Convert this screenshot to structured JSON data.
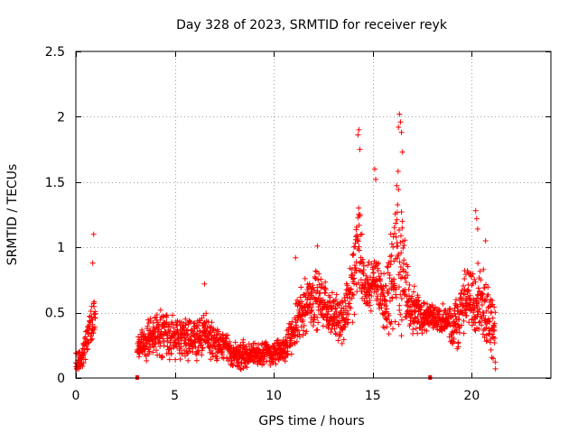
{
  "chart_data": {
    "type": "scatter",
    "title": "Day 328 of 2023, SRMTID for receiver reyk",
    "xlabel": "GPS time / hours",
    "ylabel": "SRMTID / TECUs",
    "xlim": [
      0,
      24
    ],
    "ylim": [
      0,
      2.5
    ],
    "xticks": [
      0,
      5,
      10,
      15,
      20
    ],
    "xtick_labels": [
      "0",
      "5",
      "10",
      "15",
      "20"
    ],
    "yticks": [
      0,
      0.5,
      1,
      1.5,
      2,
      2.5
    ],
    "ytick_labels": [
      "0",
      "0.5",
      "1",
      "1.5",
      "2",
      "2.5"
    ],
    "grid": true,
    "marker": "+",
    "series_color": "#ff0000",
    "gap_markers_x": [
      3.1,
      17.9
    ],
    "envelope": {
      "x": [
        0.0,
        0.3,
        0.5,
        0.7,
        0.9,
        1.0,
        3.1,
        3.5,
        4.0,
        4.5,
        5.0,
        5.5,
        6.0,
        6.5,
        7.0,
        7.5,
        8.0,
        8.5,
        9.0,
        9.5,
        10.0,
        10.5,
        11.0,
        11.5,
        12.0,
        12.5,
        13.0,
        13.5,
        14.0,
        14.3,
        14.6,
        15.0,
        15.3,
        15.6,
        16.0,
        16.3,
        16.5,
        16.8,
        17.0,
        17.3,
        17.6,
        17.9,
        18.3,
        18.7,
        19.0,
        19.3,
        19.6,
        20.0,
        20.3,
        20.6,
        21.0,
        21.2
      ],
      "low": [
        0.05,
        0.05,
        0.1,
        0.2,
        0.25,
        0.3,
        0.1,
        0.1,
        0.12,
        0.12,
        0.12,
        0.12,
        0.12,
        0.12,
        0.12,
        0.12,
        0.05,
        0.05,
        0.05,
        0.08,
        0.08,
        0.1,
        0.15,
        0.3,
        0.35,
        0.35,
        0.3,
        0.25,
        0.4,
        0.5,
        0.5,
        0.5,
        0.5,
        0.3,
        0.25,
        0.3,
        0.3,
        0.3,
        0.3,
        0.3,
        0.3,
        0.35,
        0.35,
        0.3,
        0.15,
        0.15,
        0.3,
        0.35,
        0.3,
        0.25,
        0.15,
        0.1
      ],
      "high": [
        0.2,
        0.25,
        0.4,
        0.55,
        0.7,
        0.75,
        0.35,
        0.45,
        0.55,
        0.55,
        0.5,
        0.5,
        0.5,
        0.55,
        0.45,
        0.35,
        0.3,
        0.3,
        0.3,
        0.3,
        0.3,
        0.32,
        0.55,
        0.8,
        0.9,
        0.8,
        0.65,
        0.65,
        1.1,
        1.6,
        0.85,
        0.95,
        1.0,
        0.8,
        1.3,
        1.75,
        1.3,
        0.9,
        0.8,
        0.7,
        0.6,
        0.6,
        0.55,
        0.6,
        0.55,
        0.8,
        0.85,
        0.9,
        0.95,
        0.85,
        0.75,
        0.6
      ]
    },
    "outliers": [
      {
        "x": 0.9,
        "y": 1.1
      },
      {
        "x": 0.85,
        "y": 0.88
      },
      {
        "x": 6.5,
        "y": 0.72
      },
      {
        "x": 11.1,
        "y": 0.92
      },
      {
        "x": 12.2,
        "y": 1.01
      },
      {
        "x": 14.3,
        "y": 1.9
      },
      {
        "x": 14.25,
        "y": 1.86
      },
      {
        "x": 14.35,
        "y": 1.75
      },
      {
        "x": 15.1,
        "y": 1.6
      },
      {
        "x": 15.15,
        "y": 1.52
      },
      {
        "x": 16.35,
        "y": 2.02
      },
      {
        "x": 16.4,
        "y": 1.96
      },
      {
        "x": 16.3,
        "y": 1.92
      },
      {
        "x": 16.45,
        "y": 1.88
      },
      {
        "x": 16.5,
        "y": 1.73
      },
      {
        "x": 20.2,
        "y": 1.28
      },
      {
        "x": 20.25,
        "y": 1.22
      },
      {
        "x": 20.3,
        "y": 1.14
      },
      {
        "x": 20.7,
        "y": 1.05
      },
      {
        "x": 21.2,
        "y": 0.07
      }
    ]
  }
}
